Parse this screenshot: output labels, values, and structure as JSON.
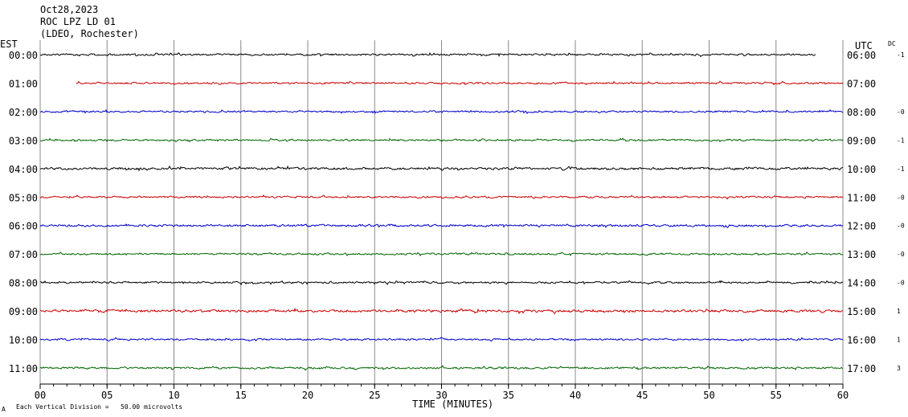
{
  "header": {
    "date": "Oct28,2023",
    "station": "ROC LPZ LD 01",
    "network": "(LDEO, Rochester)"
  },
  "labels": {
    "left_tz": "EST",
    "right_tz": "UTC",
    "dc_header": "DC",
    "x_title": "TIME (MINUTES)",
    "scale_note": "Each Vertical Division =   50.00 microvolts",
    "corner_mark": "A"
  },
  "colors": {
    "cycle": [
      "#000000",
      "#cc0000",
      "#0000cc",
      "#006600"
    ],
    "grid": "#888888"
  },
  "chart_data": {
    "type": "line",
    "title": "",
    "xlabel": "TIME (MINUTES)",
    "ylabel": "",
    "xlim": [
      0,
      60
    ],
    "x_ticks": [
      "00",
      "05",
      "10",
      "15",
      "20",
      "25",
      "30",
      "35",
      "40",
      "45",
      "50",
      "55",
      "60"
    ],
    "vertical_grid": true,
    "rows": [
      {
        "est": "00:00",
        "utc": "06:00",
        "dc": "-1",
        "color": "#000000",
        "start_min": 0.0,
        "end_min": 58.0,
        "amplitude": 1.0
      },
      {
        "est": "01:00",
        "utc": "07:00",
        "dc": "",
        "color": "#cc0000",
        "start_min": 2.7,
        "end_min": 60.0,
        "amplitude": 1.0
      },
      {
        "est": "02:00",
        "utc": "08:00",
        "dc": "-0",
        "color": "#0000cc",
        "start_min": 0.0,
        "end_min": 60.0,
        "amplitude": 1.0
      },
      {
        "est": "03:00",
        "utc": "09:00",
        "dc": "-1",
        "color": "#006600",
        "start_min": 0.0,
        "end_min": 60.0,
        "amplitude": 1.0
      },
      {
        "est": "04:00",
        "utc": "10:00",
        "dc": "-1",
        "color": "#000000",
        "start_min": 0.0,
        "end_min": 60.0,
        "amplitude": 1.3
      },
      {
        "est": "05:00",
        "utc": "11:00",
        "dc": "-0",
        "color": "#cc0000",
        "start_min": 0.0,
        "end_min": 60.0,
        "amplitude": 1.0
      },
      {
        "est": "06:00",
        "utc": "12:00",
        "dc": "-0",
        "color": "#0000cc",
        "start_min": 0.0,
        "end_min": 60.0,
        "amplitude": 1.2
      },
      {
        "est": "07:00",
        "utc": "13:00",
        "dc": "-0",
        "color": "#006600",
        "start_min": 0.0,
        "end_min": 60.0,
        "amplitude": 1.0
      },
      {
        "est": "08:00",
        "utc": "14:00",
        "dc": "-0",
        "color": "#000000",
        "start_min": 0.0,
        "end_min": 60.0,
        "amplitude": 1.0
      },
      {
        "est": "09:00",
        "utc": "15:00",
        "dc": "1",
        "color": "#cc0000",
        "start_min": 0.0,
        "end_min": 60.0,
        "amplitude": 1.4
      },
      {
        "est": "10:00",
        "utc": "16:00",
        "dc": "1",
        "color": "#0000cc",
        "start_min": 0.0,
        "end_min": 60.0,
        "amplitude": 1.0
      },
      {
        "est": "11:00",
        "utc": "17:00",
        "dc": "3",
        "color": "#006600",
        "start_min": 0.0,
        "end_min": 60.0,
        "amplitude": 1.1
      }
    ]
  }
}
